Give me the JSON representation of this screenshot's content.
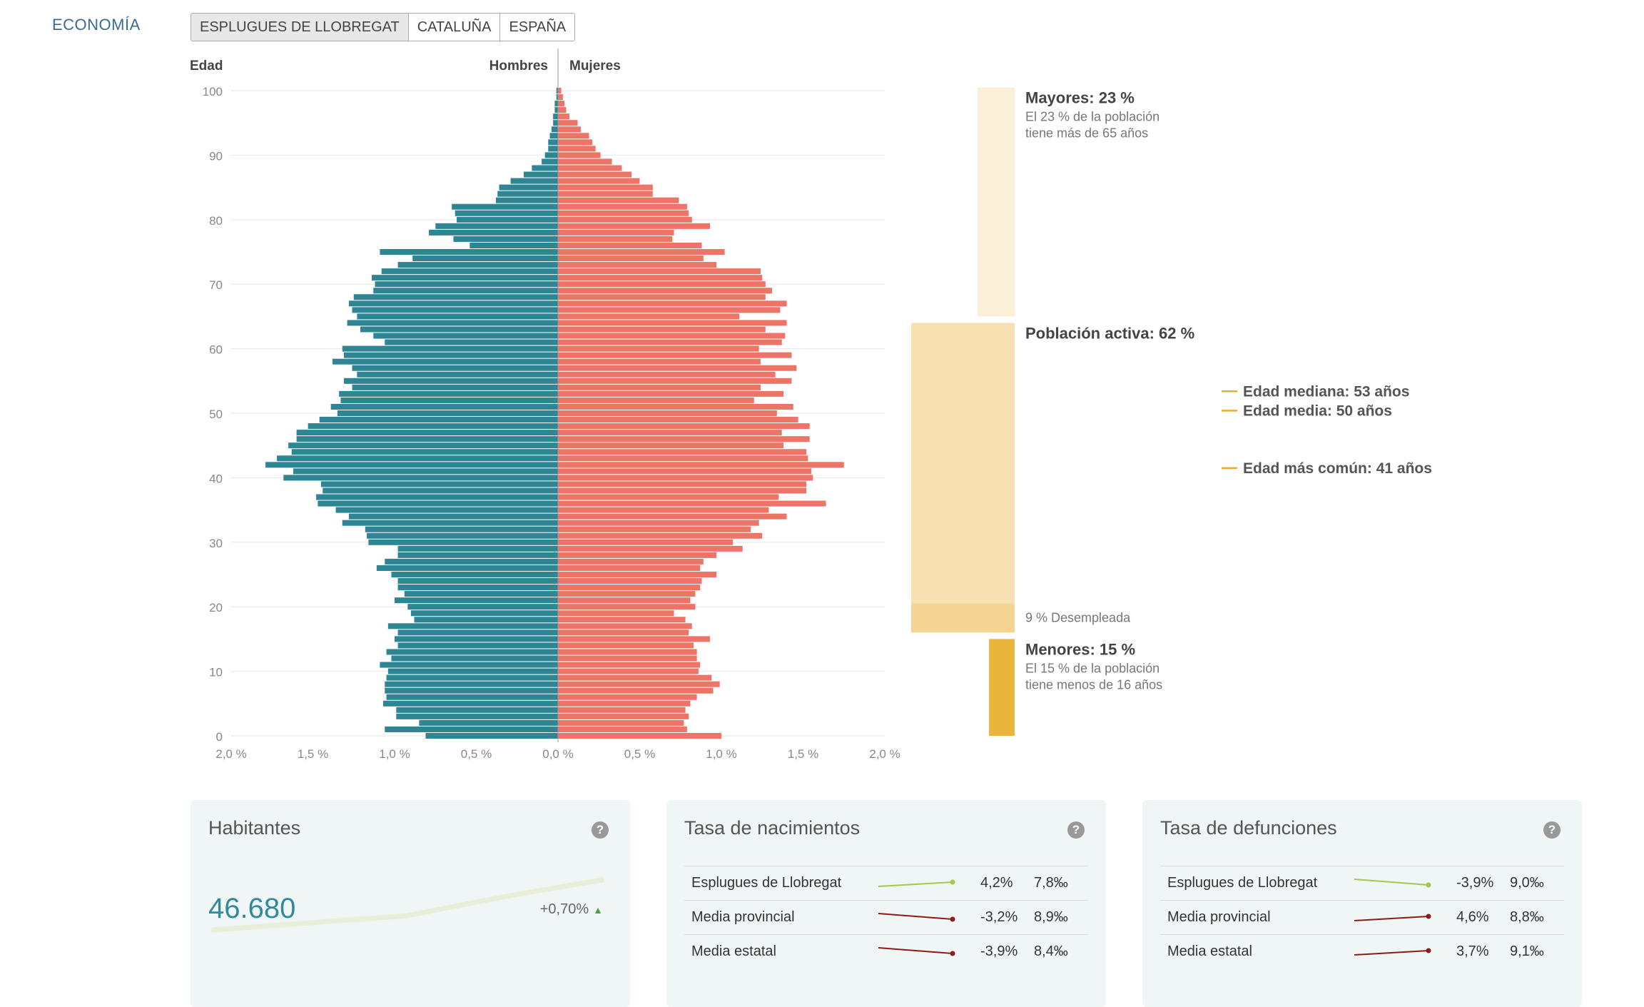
{
  "section_label": "ECONOMÍA",
  "tabs": [
    {
      "label": "ESPLUGUES DE LLOBREGAT",
      "active": true
    },
    {
      "label": "CATALUÑA",
      "active": false
    },
    {
      "label": "ESPAÑA",
      "active": false
    }
  ],
  "chart_data": {
    "type": "bar",
    "orientation": "horizontal-pyramid",
    "ylabel": "Edad",
    "left_label": "Hombres",
    "right_label": "Mujeres",
    "x_ticks": [
      "2,0 %",
      "1,5 %",
      "1,0 %",
      "0,5 %",
      "0,0 %",
      "0,5 %",
      "1,0 %",
      "1,5 %",
      "2,0 %"
    ],
    "y_ticks": [
      "0",
      "10",
      "20",
      "30",
      "40",
      "50",
      "60",
      "70",
      "80",
      "90",
      "100"
    ],
    "xlim": [
      -2.0,
      2.0
    ],
    "ylim": [
      0,
      100
    ],
    "ages": [
      0,
      1,
      2,
      3,
      4,
      5,
      6,
      7,
      8,
      9,
      10,
      11,
      12,
      13,
      14,
      15,
      16,
      17,
      18,
      19,
      20,
      21,
      22,
      23,
      24,
      25,
      26,
      27,
      28,
      29,
      30,
      31,
      32,
      33,
      34,
      35,
      36,
      37,
      38,
      39,
      40,
      41,
      42,
      43,
      44,
      45,
      46,
      47,
      48,
      49,
      50,
      51,
      52,
      53,
      54,
      55,
      56,
      57,
      58,
      59,
      60,
      61,
      62,
      63,
      64,
      65,
      66,
      67,
      68,
      69,
      70,
      71,
      72,
      73,
      74,
      75,
      76,
      77,
      78,
      79,
      80,
      81,
      82,
      83,
      84,
      85,
      86,
      87,
      88,
      89,
      90,
      91,
      92,
      93,
      94,
      95,
      96,
      97,
      98,
      99,
      100
    ],
    "series": [
      {
        "name": "Hombres",
        "color": "#2e8594",
        "values": [
          0.81,
          1.06,
          0.85,
          0.99,
          0.99,
          1.07,
          1.05,
          1.06,
          1.06,
          1.05,
          1.04,
          1.09,
          1.02,
          1.05,
          0.98,
          1.0,
          0.98,
          1.04,
          0.88,
          0.9,
          0.92,
          1.0,
          0.94,
          0.98,
          0.98,
          1.02,
          1.11,
          1.06,
          0.98,
          0.98,
          1.16,
          1.17,
          1.18,
          1.32,
          1.28,
          1.36,
          1.47,
          1.48,
          1.44,
          1.45,
          1.68,
          1.62,
          1.79,
          1.72,
          1.63,
          1.65,
          1.6,
          1.6,
          1.53,
          1.46,
          1.35,
          1.39,
          1.33,
          1.34,
          1.26,
          1.31,
          1.23,
          1.26,
          1.38,
          1.31,
          1.32,
          1.06,
          1.13,
          1.21,
          1.29,
          1.23,
          1.26,
          1.28,
          1.25,
          1.13,
          1.12,
          1.14,
          1.08,
          0.98,
          0.89,
          1.09,
          0.54,
          0.64,
          0.79,
          0.75,
          0.62,
          0.63,
          0.65,
          0.38,
          0.37,
          0.36,
          0.29,
          0.21,
          0.16,
          0.1,
          0.08,
          0.06,
          0.06,
          0.05,
          0.04,
          0.03,
          0.03,
          0.02,
          0.02,
          0.01,
          0.01
        ]
      },
      {
        "name": "Mujeres",
        "color": "#ec7568",
        "values": [
          1.0,
          0.79,
          0.77,
          0.8,
          0.78,
          0.81,
          0.85,
          0.95,
          0.99,
          0.94,
          0.86,
          0.87,
          0.85,
          0.85,
          0.83,
          0.93,
          0.8,
          0.82,
          0.78,
          0.71,
          0.84,
          0.81,
          0.84,
          0.87,
          0.88,
          0.97,
          0.87,
          0.89,
          0.97,
          1.13,
          1.07,
          1.25,
          1.18,
          1.23,
          1.4,
          1.29,
          1.64,
          1.35,
          1.52,
          1.52,
          1.56,
          1.55,
          1.75,
          1.53,
          1.52,
          1.38,
          1.54,
          1.37,
          1.54,
          1.47,
          1.34,
          1.44,
          1.2,
          1.38,
          1.24,
          1.43,
          1.33,
          1.46,
          1.24,
          1.43,
          1.23,
          1.37,
          1.39,
          1.27,
          1.4,
          1.11,
          1.36,
          1.4,
          1.27,
          1.31,
          1.27,
          1.25,
          1.24,
          0.97,
          0.89,
          1.02,
          0.88,
          0.7,
          0.71,
          0.93,
          0.82,
          0.8,
          0.79,
          0.74,
          0.58,
          0.58,
          0.5,
          0.45,
          0.39,
          0.33,
          0.26,
          0.23,
          0.21,
          0.19,
          0.14,
          0.12,
          0.07,
          0.05,
          0.04,
          0.03,
          0.02
        ]
      }
    ],
    "age_groups": [
      {
        "title": "Mayores: 23 %",
        "line1": "El 23 % de la población",
        "line2": "tiene más de 65 años",
        "color": "#fbefd7",
        "from_age": 65,
        "to_age": 100.5
      },
      {
        "title": "Población activa: 62 %",
        "line1": "",
        "line2": "",
        "color": "#f7e0b2",
        "from_age": 20.5,
        "to_age": 64
      },
      {
        "title": "",
        "line1": "9 % Desempleada",
        "line2": "",
        "color": "#f4d493",
        "from_age": 16,
        "to_age": 20.5
      },
      {
        "title": "Menores: 15 %",
        "line1": "El 15 % de la población",
        "line2": "tiene menos de 16 años",
        "color": "#eab53c",
        "from_age": 0,
        "to_age": 15
      }
    ],
    "stat_lines": [
      {
        "label": "Edad mediana: 53 años",
        "age": 53.4
      },
      {
        "label": "Edad media: 50 años",
        "age": 50.4
      },
      {
        "label": "Edad más común: 41 años",
        "age": 41.5
      }
    ],
    "colors": {
      "grid": "#e6e6e6",
      "tick": "#888",
      "marker": "#f0a830"
    }
  },
  "cards": {
    "habitantes": {
      "title": "Habitantes",
      "value": "46.680",
      "delta": "+0,70%",
      "trend": [
        2.0,
        2.3,
        2.6,
        3.4,
        4.1
      ]
    },
    "nacimientos": {
      "title": "Tasa de nacimientos",
      "rows": [
        {
          "name": "Esplugues de Llobregat",
          "pct": "4,2%",
          "per": "7,8‰",
          "trend": "up",
          "color": "#a6c64c"
        },
        {
          "name": "Media provincial",
          "pct": "-3,2%",
          "per": "8,9‰",
          "trend": "down",
          "color": "#8b1c1c"
        },
        {
          "name": "Media estatal",
          "pct": "-3,9%",
          "per": "8,4‰",
          "trend": "down",
          "color": "#8b1c1c"
        }
      ]
    },
    "defunciones": {
      "title": "Tasa de defunciones",
      "rows": [
        {
          "name": "Esplugues de Llobregat",
          "pct": "-3,9%",
          "per": "9,0‰",
          "trend": "down",
          "color": "#a6c64c"
        },
        {
          "name": "Media provincial",
          "pct": "4,6%",
          "per": "8,8‰",
          "trend": "up",
          "color": "#8b1c1c"
        },
        {
          "name": "Media estatal",
          "pct": "3,7%",
          "per": "9,1‰",
          "trend": "up",
          "color": "#8b1c1c"
        }
      ]
    }
  }
}
